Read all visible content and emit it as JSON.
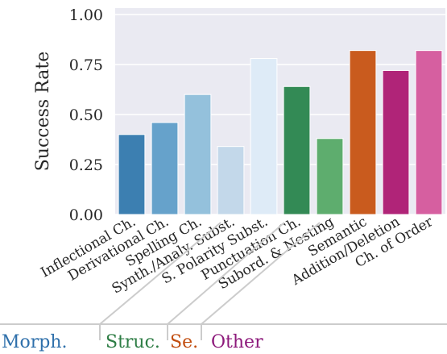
{
  "chart_data": {
    "type": "bar",
    "title": "",
    "xlabel": "",
    "ylabel": "Success Rate",
    "ylim": [
      0,
      1.0
    ],
    "yticks": [
      "0.00",
      "0.25",
      "0.50",
      "0.75",
      "1.00"
    ],
    "grid": true,
    "categories": [
      "Inflectional Ch.",
      "Derivational Ch.",
      "Spelling Ch.",
      "Synth./Analy. Subst.",
      "S. Polarity Subst.",
      "Punctuation Ch.",
      "Subord. & Nesting",
      "Semantic",
      "Addition/Deletion",
      "Ch. of Order"
    ],
    "values": [
      0.4,
      0.46,
      0.6,
      0.34,
      0.78,
      0.64,
      0.38,
      0.82,
      0.72,
      0.82
    ],
    "colors": [
      "#3c7fb1",
      "#66a2cb",
      "#94c1dc",
      "#c3d8ea",
      "#deebf7",
      "#338a55",
      "#5ead6e",
      "#c95b1e",
      "#b02478",
      "#d65fa0"
    ],
    "groups": [
      {
        "label": "Morph.",
        "color": "#2f70ab"
      },
      {
        "label": "Struc.",
        "color": "#2e7d45"
      },
      {
        "label": "Se.",
        "color": "#c24e10"
      },
      {
        "label": "Other",
        "color": "#8d1a7b"
      }
    ]
  }
}
